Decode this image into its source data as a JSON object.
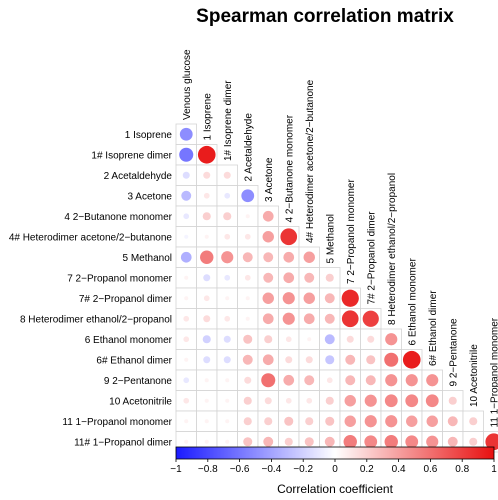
{
  "chart_data": {
    "type": "heatmap",
    "title": "Spearman correlation matrix",
    "variables": [
      "Venous glucose",
      "1 Isoprene",
      "1# Isoprene dimer",
      "2 Acetaldehyde",
      "3 Acetone",
      "4 2−Butanone monomer",
      "4# Heterodimer acetone/2−butanone",
      "5 Methanol",
      "7 2−Propanol monomer",
      "7# 2−Propanol dimer",
      "8 Heterodimer ethanol/2−propanol",
      "6 Ethanol monomer",
      "6# Ethanol dimer",
      "9 2−Pentanone",
      "10 Acetonitrile",
      "11 1−Propanol monomer",
      "11# 1−Propanol dimer"
    ],
    "lower_triangle": [
      [
        -0.5
      ],
      [
        -0.6,
        0.95
      ],
      [
        -0.15,
        0.15,
        0.15
      ],
      [
        -0.3,
        0.1,
        -0.1,
        -0.5
      ],
      [
        -0.1,
        0.2,
        0.2,
        0.05,
        0.35
      ],
      [
        -0.05,
        0.05,
        0.1,
        0.1,
        0.4,
        0.85
      ],
      [
        -0.35,
        0.55,
        0.45,
        0.3,
        0.3,
        0.35,
        0.4
      ],
      [
        0.05,
        -0.15,
        -0.1,
        0.1,
        0.3,
        0.35,
        0.3,
        0.2
      ],
      [
        0.05,
        0.1,
        0.05,
        0.05,
        0.4,
        0.45,
        0.4,
        0.3,
        0.9
      ],
      [
        0.1,
        0.15,
        0.1,
        0.05,
        0.35,
        0.45,
        0.35,
        0.3,
        0.85,
        0.8
      ],
      [
        0.1,
        -0.2,
        -0.15,
        0.25,
        0.2,
        0.1,
        0.05,
        -0.3,
        0.15,
        0.15,
        0.45
      ],
      [
        0.05,
        -0.15,
        -0.15,
        0.3,
        0.35,
        0.15,
        0.15,
        -0.25,
        0.3,
        0.25,
        0.6,
        0.95
      ],
      [
        -0.1,
        0.05,
        0.05,
        0.15,
        0.6,
        0.35,
        0.3,
        0.1,
        0.3,
        0.3,
        0.45,
        0.45,
        0.45
      ],
      [
        0.1,
        0.05,
        0.05,
        0.2,
        0.15,
        0.1,
        0.1,
        0.2,
        0.4,
        0.45,
        0.5,
        0.5,
        0.5,
        0.2
      ],
      [
        0.05,
        0.05,
        0.05,
        0.2,
        0.2,
        0.25,
        0.2,
        0.25,
        0.4,
        0.45,
        0.45,
        0.4,
        0.4,
        0.3,
        0.2
      ],
      [
        0.05,
        0.05,
        0.05,
        0.25,
        0.3,
        0.2,
        0.25,
        0.3,
        0.55,
        0.5,
        0.55,
        0.5,
        0.45,
        0.3,
        0.2,
        0.85
      ]
    ],
    "colorbar": {
      "label": "Correlation coefficient",
      "range": [
        -1,
        1
      ],
      "ticks": [
        "−1",
        "−0.8",
        "−0.6",
        "−0.4",
        "−0.2",
        "0",
        "0.2",
        "0.4",
        "0.6",
        "0.8",
        "1"
      ],
      "low_color": "#1a1aff",
      "mid_color": "#ffffff",
      "high_color": "#e81010"
    },
    "legend_position": "bottom"
  }
}
